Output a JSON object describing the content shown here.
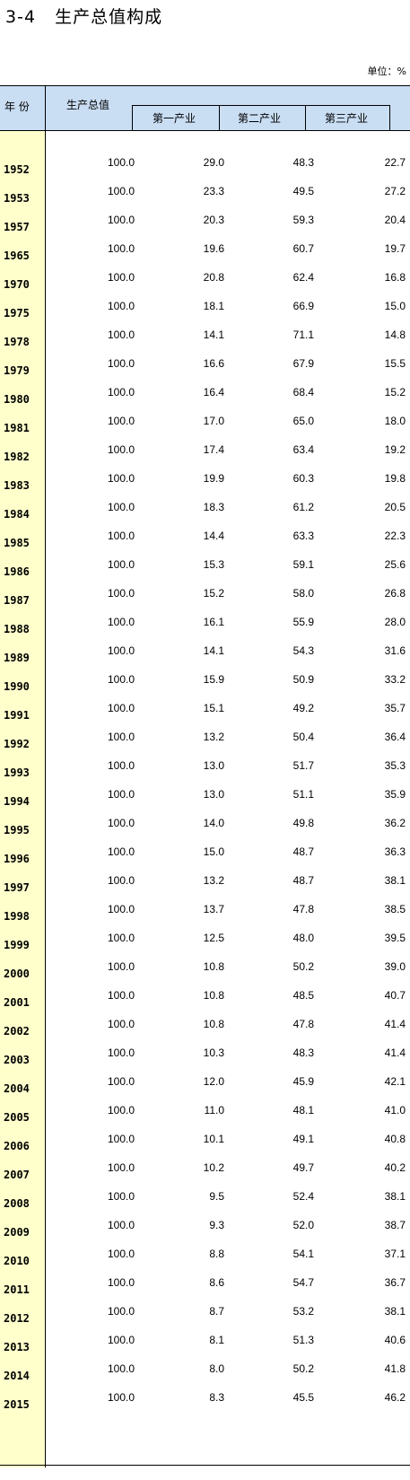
{
  "title": "3-4   生产总值构成",
  "unit": "单位：%",
  "headers": {
    "year": "年  份",
    "total": "生产总值",
    "primary": "第一产业",
    "secondary": "第二产业",
    "tertiary": "第三产业"
  },
  "rows": [
    {
      "year": "1952",
      "total": "100.0",
      "primary": "29.0",
      "secondary": "48.3",
      "tertiary": "22.7"
    },
    {
      "year": "1953",
      "total": "100.0",
      "primary": "23.3",
      "secondary": "49.5",
      "tertiary": "27.2"
    },
    {
      "year": "1957",
      "total": "100.0",
      "primary": "20.3",
      "secondary": "59.3",
      "tertiary": "20.4"
    },
    {
      "year": "1965",
      "total": "100.0",
      "primary": "19.6",
      "secondary": "60.7",
      "tertiary": "19.7"
    },
    {
      "year": "1970",
      "total": "100.0",
      "primary": "20.8",
      "secondary": "62.4",
      "tertiary": "16.8"
    },
    {
      "year": "1975",
      "total": "100.0",
      "primary": "18.1",
      "secondary": "66.9",
      "tertiary": "15.0"
    },
    {
      "year": "1978",
      "total": "100.0",
      "primary": "14.1",
      "secondary": "71.1",
      "tertiary": "14.8"
    },
    {
      "year": "1979",
      "total": "100.0",
      "primary": "16.6",
      "secondary": "67.9",
      "tertiary": "15.5"
    },
    {
      "year": "1980",
      "total": "100.0",
      "primary": "16.4",
      "secondary": "68.4",
      "tertiary": "15.2"
    },
    {
      "year": "1981",
      "total": "100.0",
      "primary": "17.0",
      "secondary": "65.0",
      "tertiary": "18.0"
    },
    {
      "year": "1982",
      "total": "100.0",
      "primary": "17.4",
      "secondary": "63.4",
      "tertiary": "19.2"
    },
    {
      "year": "1983",
      "total": "100.0",
      "primary": "19.9",
      "secondary": "60.3",
      "tertiary": "19.8"
    },
    {
      "year": "1984",
      "total": "100.0",
      "primary": "18.3",
      "secondary": "61.2",
      "tertiary": "20.5"
    },
    {
      "year": "1985",
      "total": "100.0",
      "primary": "14.4",
      "secondary": "63.3",
      "tertiary": "22.3"
    },
    {
      "year": "1986",
      "total": "100.0",
      "primary": "15.3",
      "secondary": "59.1",
      "tertiary": "25.6"
    },
    {
      "year": "1987",
      "total": "100.0",
      "primary": "15.2",
      "secondary": "58.0",
      "tertiary": "26.8"
    },
    {
      "year": "1988",
      "total": "100.0",
      "primary": "16.1",
      "secondary": "55.9",
      "tertiary": "28.0"
    },
    {
      "year": "1989",
      "total": "100.0",
      "primary": "14.1",
      "secondary": "54.3",
      "tertiary": "31.6"
    },
    {
      "year": "1990",
      "total": "100.0",
      "primary": "15.9",
      "secondary": "50.9",
      "tertiary": "33.2"
    },
    {
      "year": "1991",
      "total": "100.0",
      "primary": "15.1",
      "secondary": "49.2",
      "tertiary": "35.7"
    },
    {
      "year": "1992",
      "total": "100.0",
      "primary": "13.2",
      "secondary": "50.4",
      "tertiary": "36.4"
    },
    {
      "year": "1993",
      "total": "100.0",
      "primary": "13.0",
      "secondary": "51.7",
      "tertiary": "35.3"
    },
    {
      "year": "1994",
      "total": "100.0",
      "primary": "13.0",
      "secondary": "51.1",
      "tertiary": "35.9"
    },
    {
      "year": "1995",
      "total": "100.0",
      "primary": "14.0",
      "secondary": "49.8",
      "tertiary": "36.2"
    },
    {
      "year": "1996",
      "total": "100.0",
      "primary": "15.0",
      "secondary": "48.7",
      "tertiary": "36.3"
    },
    {
      "year": "1997",
      "total": "100.0",
      "primary": "13.2",
      "secondary": "48.7",
      "tertiary": "38.1"
    },
    {
      "year": "1998",
      "total": "100.0",
      "primary": "13.7",
      "secondary": "47.8",
      "tertiary": "38.5"
    },
    {
      "year": "1999",
      "total": "100.0",
      "primary": "12.5",
      "secondary": "48.0",
      "tertiary": "39.5"
    },
    {
      "year": "2000",
      "total": "100.0",
      "primary": "10.8",
      "secondary": "50.2",
      "tertiary": "39.0"
    },
    {
      "year": "2001",
      "total": "100.0",
      "primary": "10.8",
      "secondary": "48.5",
      "tertiary": "40.7"
    },
    {
      "year": "2002",
      "total": "100.0",
      "primary": "10.8",
      "secondary": "47.8",
      "tertiary": "41.4"
    },
    {
      "year": "2003",
      "total": "100.0",
      "primary": "10.3",
      "secondary": "48.3",
      "tertiary": "41.4"
    },
    {
      "year": "2004",
      "total": "100.0",
      "primary": "12.0",
      "secondary": "45.9",
      "tertiary": "42.1"
    },
    {
      "year": "2005",
      "total": "100.0",
      "primary": "11.0",
      "secondary": "48.1",
      "tertiary": "41.0"
    },
    {
      "year": "2006",
      "total": "100.0",
      "primary": "10.1",
      "secondary": "49.1",
      "tertiary": "40.8"
    },
    {
      "year": "2007",
      "total": "100.0",
      "primary": "10.2",
      "secondary": "49.7",
      "tertiary": "40.2"
    },
    {
      "year": "2008",
      "total": "100.0",
      "primary": "9.5",
      "secondary": "52.4",
      "tertiary": "38.1"
    },
    {
      "year": "2009",
      "total": "100.0",
      "primary": "9.3",
      "secondary": "52.0",
      "tertiary": "38.7"
    },
    {
      "year": "2010",
      "total": "100.0",
      "primary": "8.8",
      "secondary": "54.1",
      "tertiary": "37.1"
    },
    {
      "year": "2011",
      "total": "100.0",
      "primary": "8.6",
      "secondary": "54.7",
      "tertiary": "36.7"
    },
    {
      "year": "2012",
      "total": "100.0",
      "primary": "8.7",
      "secondary": "53.2",
      "tertiary": "38.1"
    },
    {
      "year": "2013",
      "total": "100.0",
      "primary": "8.1",
      "secondary": "51.3",
      "tertiary": "40.6"
    },
    {
      "year": "2014",
      "total": "100.0",
      "primary": "8.0",
      "secondary": "50.2",
      "tertiary": "41.8"
    },
    {
      "year": "2015",
      "total": "100.0",
      "primary": "8.3",
      "secondary": "45.5",
      "tertiary": "46.2"
    }
  ]
}
